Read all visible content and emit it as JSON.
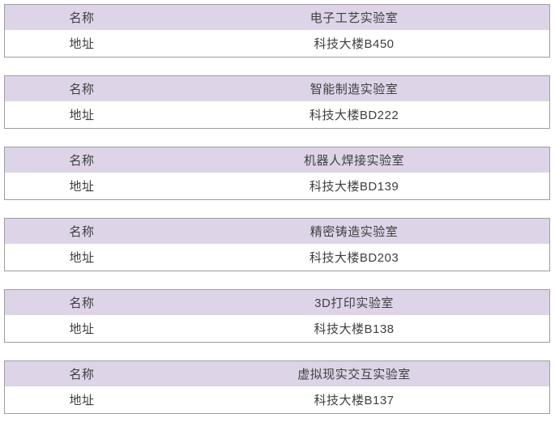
{
  "styles": {
    "header_row_bg": "#ddd4e8",
    "body_row_bg": "#ffffff",
    "border_color": "#9d9d9d",
    "text_color": "#3f3f3f",
    "page_bg": "#ffffff"
  },
  "labels": {
    "name": "名称",
    "address": "地址"
  },
  "labs": [
    {
      "name": "电子工艺实验室",
      "address": "科技大楼B450"
    },
    {
      "name": "智能制造实验室",
      "address": "科技大楼BD222"
    },
    {
      "name": "机器人焊接实验室",
      "address": "科技大楼BD139"
    },
    {
      "name": "精密铸造实验室",
      "address": "科技大楼BD203"
    },
    {
      "name": "3D打印实验室",
      "address": "科技大楼B138"
    },
    {
      "name": "虚拟现实交互实验室",
      "address": "科技大楼B137"
    }
  ]
}
